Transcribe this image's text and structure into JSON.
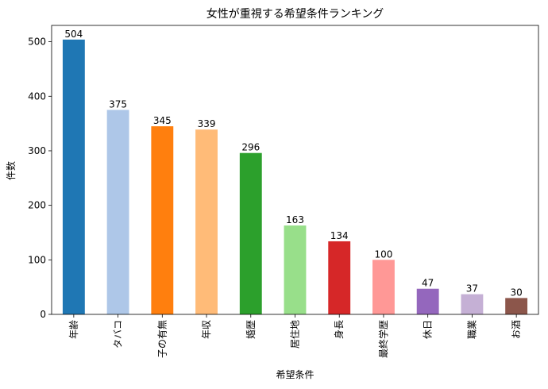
{
  "chart_data": {
    "type": "bar",
    "title": "女性が重視する希望条件ランキング",
    "xlabel": "希望条件",
    "ylabel": "件数",
    "ylim": [
      0,
      530
    ],
    "yticks": [
      0,
      100,
      200,
      300,
      400,
      500
    ],
    "grid": false,
    "categories": [
      "年齢",
      "タバコ",
      "子の有無",
      "年収",
      "婚歴",
      "居住地",
      "身長",
      "最終学歴",
      "休日",
      "職業",
      "お酒"
    ],
    "values": [
      504,
      375,
      345,
      339,
      296,
      163,
      134,
      100,
      47,
      37,
      30
    ],
    "colors": [
      "#1f77b4",
      "#aec7e8",
      "#ff7f0e",
      "#ffbb78",
      "#2ca02c",
      "#98df8a",
      "#d62728",
      "#ff9896",
      "#9467bd",
      "#c5b0d5",
      "#8c564b"
    ]
  }
}
